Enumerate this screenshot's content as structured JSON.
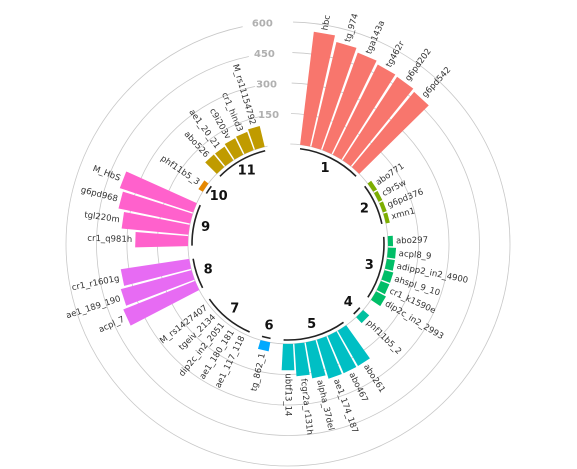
{
  "chart_data": {
    "type": "circular-bar",
    "y_ticks": [
      150,
      300,
      450,
      600
    ],
    "ylim": [
      0,
      600
    ],
    "groups": [
      {
        "name": "1",
        "color": "#F8766D",
        "bars": [
          {
            "label": "hbc",
            "value": 560
          },
          {
            "label": "tg_974",
            "value": 530
          },
          {
            "label": "tga143a",
            "value": 510
          },
          {
            "label": "tg462r",
            "value": 495
          },
          {
            "label": "g6pd202",
            "value": 490
          },
          {
            "label": "g6pd542",
            "value": 480
          }
        ]
      },
      {
        "name": "2",
        "color": "#7CAE00",
        "bars": [
          {
            "label": "abo771",
            "value": 22
          },
          {
            "label": "c9r5w",
            "value": 20
          },
          {
            "label": "g6pd376",
            "value": 20
          },
          {
            "label": "xmn1",
            "value": 20
          }
        ]
      },
      {
        "name": "3",
        "color": "#00BE67",
        "bars": [
          {
            "label": "abo297",
            "value": 25
          },
          {
            "label": "acpl8_9",
            "value": 40
          },
          {
            "label": "adipp2_in2_4900",
            "value": 40
          },
          {
            "label": "ahspl_9_10",
            "value": 45
          },
          {
            "label": "cr1_k1590e",
            "value": 45
          },
          {
            "label": "dip2c_in2_2993",
            "value": 55
          }
        ]
      },
      {
        "name": "4",
        "color": "#00C1A0",
        "bars": [
          {
            "label": "phf11b5_2",
            "value": 40
          }
        ]
      },
      {
        "name": "5",
        "color": "#00BFC4",
        "bars": [
          {
            "label": "abo261",
            "value": 200
          },
          {
            "label": "abo467",
            "value": 200
          },
          {
            "label": "ae1_174_187",
            "value": 200
          },
          {
            "label": "alpha_37del",
            "value": 180
          },
          {
            "label": "fcgr2a_r131h",
            "value": 160
          },
          {
            "label": "ubtf13_14",
            "value": 130
          }
        ]
      },
      {
        "name": "6",
        "color": "#00A9FF",
        "bars": [
          {
            "label": "tg_862_1",
            "value": 45
          }
        ]
      },
      {
        "name": "7",
        "color": "#8494FF",
        "bars": [
          {
            "label": "ae1_117_118",
            "value": 0
          },
          {
            "label": "ae1_180_181",
            "value": 0
          },
          {
            "label": "dip2c_in2_2051",
            "value": 0
          },
          {
            "label": "tgeiv_2134",
            "value": 0
          },
          {
            "label": "M_rs1427407",
            "value": 0
          }
        ]
      },
      {
        "name": "8",
        "color": "#E76BF3",
        "bars": [
          {
            "label": "acpl_7",
            "value": 380
          },
          {
            "label": "ae1_189_190",
            "value": 360
          },
          {
            "label": "cr1_r1601g",
            "value": 340
          }
        ]
      },
      {
        "name": "9",
        "color": "#FF61CC",
        "bars": [
          {
            "label": "cr1_q981h",
            "value": 260
          },
          {
            "label": "tgl220m",
            "value": 330
          },
          {
            "label": "g6pd968",
            "value": 360
          },
          {
            "label": "M_HbS",
            "value": 380
          }
        ]
      },
      {
        "name": "10",
        "color": "#E58700",
        "bars": [
          {
            "label": "phf11b5_3",
            "value": 25
          }
        ]
      },
      {
        "name": "11",
        "color": "#C09B00",
        "bars": [
          {
            "label": "abo526",
            "value": 80
          },
          {
            "label": "ae1_20_21",
            "value": 80
          },
          {
            "label": "c9i203v",
            "value": 90
          },
          {
            "label": "cr1_hind3",
            "value": 95
          },
          {
            "label": "M_rs11154792",
            "value": 105
          }
        ]
      }
    ]
  }
}
